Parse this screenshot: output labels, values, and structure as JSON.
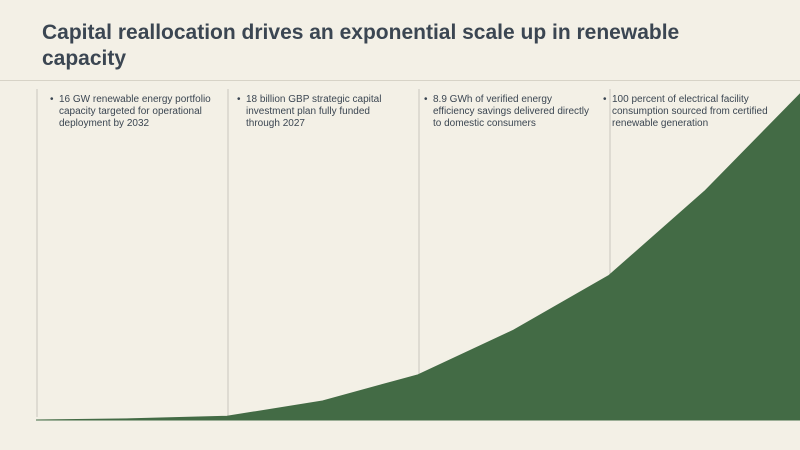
{
  "title": "Capital reallocation drives an exponential scale up in renewable capacity",
  "notes": [
    "16 GW renewable energy portfolio capacity targeted for operational deployment by 2032",
    "18 billion GBP strategic capital investment plan fully funded through 2027",
    "8.9 GWh of verified energy efficiency savings delivered directly to domestic consumers",
    "100 percent of electrical facility consumption sourced from certified renewable generation"
  ],
  "colors": {
    "background": "#f3f0e6",
    "area_fill": "#436b45",
    "divider": "#c9c6bd",
    "text": "#3b4652"
  },
  "chart_data": {
    "type": "area",
    "x": [
      0,
      1,
      2,
      3,
      4,
      5,
      6,
      7,
      8
    ],
    "values": [
      0,
      1.2,
      3.7,
      18.9,
      44.9,
      89.3,
      143.8,
      227.4,
      324.1
    ],
    "ylim": [
      0,
      324.1
    ],
    "grid": false,
    "legend": "none",
    "xlabel": "",
    "ylabel": "",
    "dividers_at_x": [
      0,
      2,
      4,
      6
    ]
  }
}
